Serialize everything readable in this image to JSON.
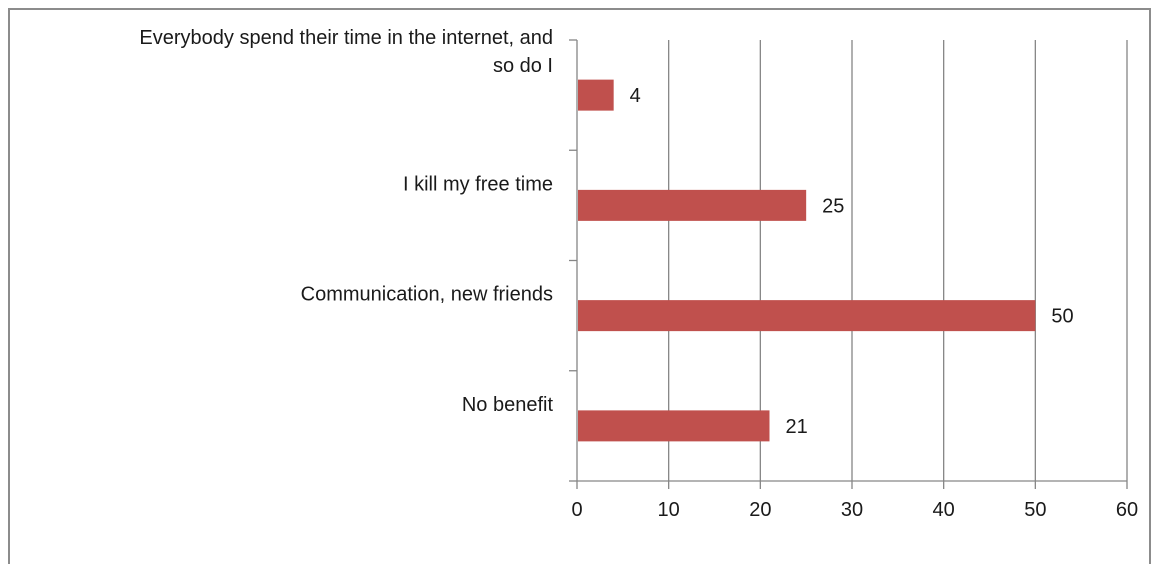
{
  "chart_data": {
    "type": "bar",
    "orientation": "horizontal",
    "categories": [
      "Everybody spend their time in the internet, and so do I",
      "I kill my free time",
      "Communication, new friends",
      "No benefit"
    ],
    "category_label_lines": [
      [
        "Everybody spend their time in the internet, and",
        "so do I"
      ],
      [
        "I kill my free time"
      ],
      [
        "Communication, new friends"
      ],
      [
        "No benefit"
      ]
    ],
    "values": [
      4,
      25,
      50,
      21
    ],
    "data_labels": [
      "4",
      "25",
      "50",
      "21"
    ],
    "xlim": [
      0,
      60
    ],
    "xticks": [
      0,
      10,
      20,
      30,
      40,
      50,
      60
    ],
    "xtick_labels": [
      "0",
      "10",
      "20",
      "30",
      "40",
      "50",
      "60"
    ],
    "grid": "vertical",
    "legend": "none",
    "colors": {
      "bar": "#c0504d",
      "grid": "#868686",
      "axis": "#868686",
      "frame": "#8c8c8c"
    }
  }
}
